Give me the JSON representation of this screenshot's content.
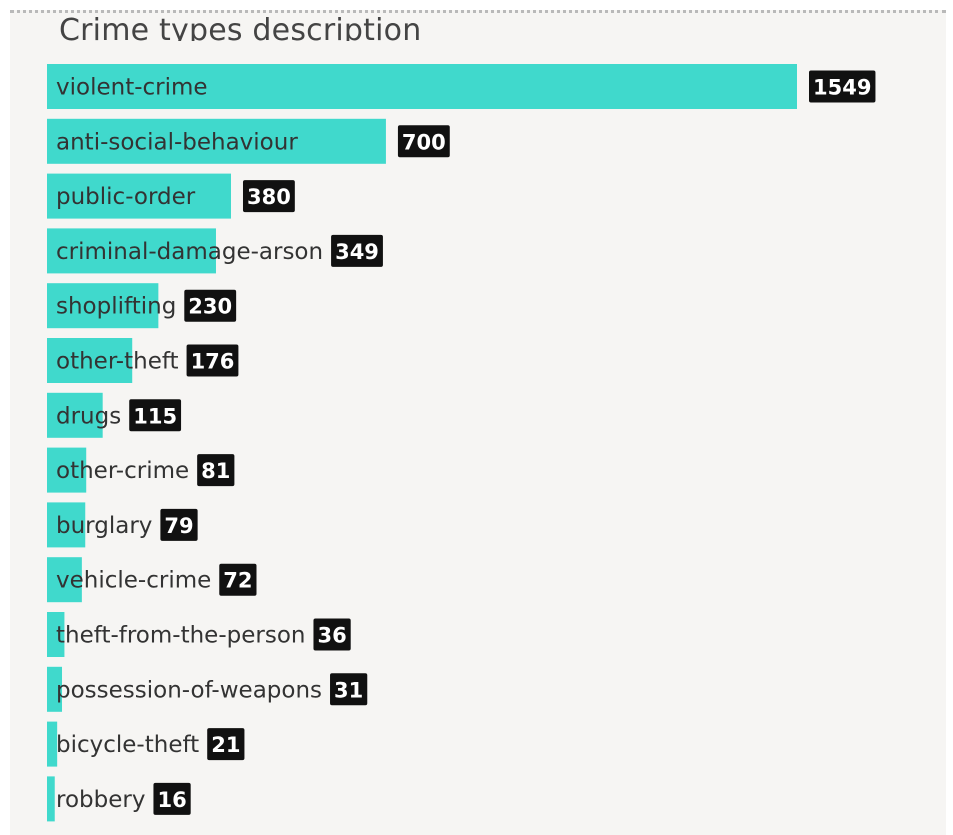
{
  "chart_data": {
    "type": "bar",
    "orientation": "horizontal",
    "title": "Crime types description",
    "categories": [
      "violent-crime",
      "anti-social-behaviour",
      "public-order",
      "criminal-damage-arson",
      "shoplifting",
      "other-theft",
      "drugs",
      "other-crime",
      "burglary",
      "vehicle-crime",
      "theft-from-the-person",
      "possession-of-weapons",
      "bicycle-theft",
      "robbery"
    ],
    "values": [
      1549,
      700,
      380,
      349,
      230,
      176,
      115,
      81,
      79,
      72,
      36,
      31,
      21,
      16
    ],
    "bar_color": "#40d9cc",
    "label_box_color": "#111111",
    "grid": false,
    "legend": "none"
  }
}
